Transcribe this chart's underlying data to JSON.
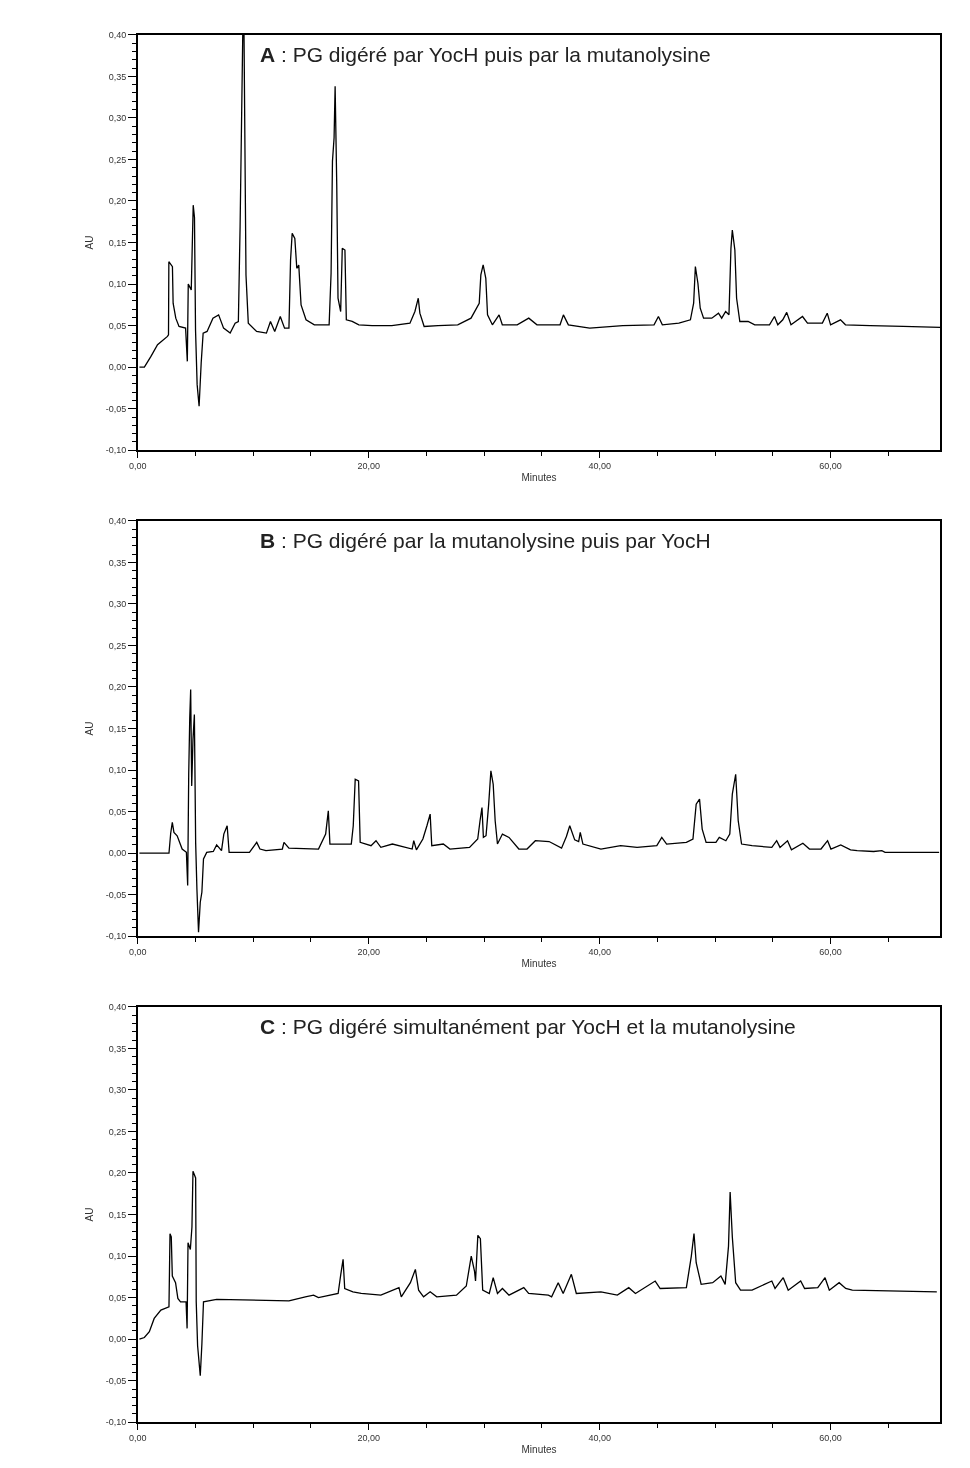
{
  "chart_data": [
    {
      "type": "line",
      "title": "A : PG digéré par YocH puis par la mutanolysine",
      "xlabel": "Minutes",
      "ylabel": "AU",
      "grid": false,
      "marker": "none",
      "line_style": "solid",
      "xlim": [
        0,
        69.5
      ],
      "ylim": [
        -0.1,
        0.4
      ],
      "xticks": [
        {
          "value": 0,
          "label": "0,00"
        },
        {
          "value": 20,
          "label": "20,00"
        },
        {
          "value": 40,
          "label": "40,00"
        },
        {
          "value": 60,
          "label": "60,00"
        }
      ],
      "yticks": [
        {
          "value": -0.1,
          "label": "-0,10"
        },
        {
          "value": -0.05,
          "label": "-0,05"
        },
        {
          "value": 0,
          "label": "0,00"
        },
        {
          "value": 0.05,
          "label": "0,05"
        },
        {
          "value": 0.1,
          "label": "0,10"
        },
        {
          "value": 0.15,
          "label": "0,15"
        },
        {
          "value": 0.2,
          "label": "0,20"
        },
        {
          "value": 0.25,
          "label": "0,25"
        },
        {
          "value": 0.3,
          "label": "0,30"
        },
        {
          "value": 0.35,
          "label": "0,35"
        },
        {
          "value": 0.4,
          "label": "0,40"
        }
      ],
      "series": [
        {
          "color": "#000000",
          "x": [
            0.14,
            0.57,
            1.14,
            1.71,
            2.57,
            2.66,
            2.69,
            3.0,
            3.06,
            3.29,
            3.57,
            4.14,
            4.29,
            4.37,
            4.63,
            4.8,
            4.91,
            5.0,
            5.14,
            5.31,
            5.49,
            5.66,
            6.0,
            6.51,
            7.0,
            7.43,
            8.0,
            8.43,
            8.71,
            8.86,
            9.09,
            9.2,
            9.37,
            9.57,
            10.29,
            11.14,
            11.49,
            11.86,
            12.34,
            12.71,
            13.09,
            13.23,
            13.37,
            13.6,
            13.77,
            13.94,
            14.14,
            14.57,
            15.29,
            16.57,
            16.74,
            16.86,
            17.0,
            17.09,
            17.23,
            17.34,
            17.57,
            17.71,
            17.94,
            18.06,
            18.57,
            19.14,
            20.29,
            22.0,
            23.57,
            24.0,
            24.29,
            24.43,
            24.8,
            26.0,
            27.71,
            28.86,
            29.57,
            29.71,
            29.91,
            30.14,
            30.29,
            30.71,
            31.29,
            31.57,
            32.86,
            33.86,
            34.57,
            36.57,
            36.86,
            37.29,
            39.14,
            42.0,
            44.71,
            45.09,
            45.43,
            46.86,
            47.86,
            48.14,
            48.29,
            48.51,
            48.71,
            49.0,
            49.71,
            50.29,
            50.57,
            50.91,
            51.2,
            51.37,
            51.49,
            51.71,
            51.86,
            52.14,
            52.86,
            53.43,
            54.71,
            55.14,
            55.43,
            55.86,
            56.2,
            56.57,
            57.57,
            58.0,
            59.29,
            59.71,
            60.0,
            60.86,
            61.29,
            63.43,
            66.29,
            69.49
          ],
          "values": [
            0.0,
            0.0,
            0.013,
            0.027,
            0.037,
            0.039,
            0.127,
            0.121,
            0.077,
            0.059,
            0.049,
            0.047,
            0.007,
            0.1,
            0.093,
            0.195,
            0.18,
            0.045,
            -0.021,
            -0.047,
            0.005,
            0.041,
            0.043,
            0.059,
            0.063,
            0.047,
            0.041,
            0.053,
            0.055,
            0.169,
            0.4,
            0.4,
            0.111,
            0.053,
            0.043,
            0.041,
            0.055,
            0.043,
            0.061,
            0.047,
            0.047,
            0.129,
            0.161,
            0.155,
            0.119,
            0.123,
            0.075,
            0.057,
            0.051,
            0.051,
            0.113,
            0.248,
            0.276,
            0.338,
            0.22,
            0.083,
            0.067,
            0.143,
            0.141,
            0.057,
            0.055,
            0.051,
            0.05,
            0.05,
            0.053,
            0.067,
            0.083,
            0.065,
            0.049,
            0.05,
            0.051,
            0.059,
            0.077,
            0.111,
            0.123,
            0.107,
            0.063,
            0.051,
            0.063,
            0.051,
            0.051,
            0.059,
            0.051,
            0.051,
            0.063,
            0.051,
            0.047,
            0.05,
            0.051,
            0.061,
            0.051,
            0.053,
            0.057,
            0.077,
            0.121,
            0.101,
            0.071,
            0.059,
            0.059,
            0.065,
            0.059,
            0.067,
            0.063,
            0.143,
            0.165,
            0.141,
            0.083,
            0.055,
            0.055,
            0.051,
            0.051,
            0.061,
            0.051,
            0.057,
            0.066,
            0.051,
            0.061,
            0.053,
            0.053,
            0.065,
            0.051,
            0.057,
            0.051,
            0.05,
            0.049,
            0.048
          ]
        }
      ]
    },
    {
      "type": "line",
      "title": "B : PG digéré par la mutanolysine puis par YocH",
      "xlabel": "Minutes",
      "ylabel": "AU",
      "grid": false,
      "marker": "none",
      "line_style": "solid",
      "xlim": [
        0,
        69.5
      ],
      "ylim": [
        -0.1,
        0.4
      ],
      "xticks": [
        {
          "value": 0,
          "label": "0,00"
        },
        {
          "value": 20,
          "label": "20,00"
        },
        {
          "value": 40,
          "label": "40,00"
        },
        {
          "value": 60,
          "label": "60,00"
        }
      ],
      "yticks": [
        {
          "value": -0.1,
          "label": "-0,10"
        },
        {
          "value": -0.05,
          "label": "-0,05"
        },
        {
          "value": 0,
          "label": "0,00"
        },
        {
          "value": 0.05,
          "label": "0,05"
        },
        {
          "value": 0.1,
          "label": "0,10"
        },
        {
          "value": 0.15,
          "label": "0,15"
        },
        {
          "value": 0.2,
          "label": "0,20"
        },
        {
          "value": 0.25,
          "label": "0,25"
        },
        {
          "value": 0.3,
          "label": "0,30"
        },
        {
          "value": 0.35,
          "label": "0,35"
        },
        {
          "value": 0.4,
          "label": "0,40"
        }
      ],
      "series": [
        {
          "color": "#000000",
          "x": [
            0.14,
            2.7,
            2.85,
            2.99,
            3.13,
            3.41,
            3.84,
            4.21,
            4.32,
            4.41,
            4.5,
            4.58,
            4.67,
            4.78,
            4.9,
            5.01,
            5.12,
            5.26,
            5.41,
            5.55,
            5.69,
            5.97,
            6.54,
            6.83,
            7.25,
            7.45,
            7.74,
            7.91,
            9.67,
            10.3,
            10.58,
            11.1,
            12.52,
            12.66,
            13.09,
            15.65,
            16.27,
            16.5,
            16.64,
            18.49,
            18.66,
            18.83,
            19.12,
            19.26,
            20.2,
            20.63,
            21.05,
            22.05,
            23.76,
            23.9,
            24.13,
            24.69,
            25.04,
            25.32,
            25.46,
            26.46,
            27.03,
            28.73,
            29.44,
            29.64,
            29.81,
            29.93,
            30.16,
            30.39,
            30.58,
            30.78,
            30.95,
            31.15,
            31.58,
            32.15,
            33.0,
            33.71,
            34.43,
            35.62,
            36.7,
            37.12,
            37.41,
            37.84,
            38.18,
            38.32,
            38.55,
            40.11,
            41.82,
            43.24,
            44.95,
            45.38,
            45.8,
            47.51,
            48.08,
            48.36,
            48.65,
            48.88,
            49.22,
            50.07,
            50.36,
            50.93,
            51.27,
            51.49,
            51.78,
            52.0,
            52.29,
            53.2,
            54.91,
            55.33,
            55.62,
            56.27,
            56.61,
            57.6,
            58.17,
            59.17,
            59.74,
            60.03,
            60.88,
            61.73,
            62.3,
            63.73,
            64.44,
            64.72,
            69.4
          ],
          "values": [
            0.0,
            0.0,
            0.024,
            0.037,
            0.025,
            0.021,
            0.005,
            0.001,
            -0.039,
            0.095,
            0.163,
            0.197,
            0.081,
            0.137,
            0.167,
            0.013,
            -0.043,
            -0.095,
            -0.059,
            -0.047,
            -0.007,
            0.001,
            0.002,
            0.01,
            0.003,
            0.023,
            0.033,
            0.001,
            0.001,
            0.013,
            0.005,
            0.003,
            0.005,
            0.013,
            0.006,
            0.005,
            0.023,
            0.051,
            0.011,
            0.011,
            0.033,
            0.089,
            0.087,
            0.013,
            0.009,
            0.015,
            0.007,
            0.011,
            0.005,
            0.015,
            0.004,
            0.017,
            0.033,
            0.047,
            0.009,
            0.011,
            0.005,
            0.007,
            0.017,
            0.039,
            0.055,
            0.019,
            0.021,
            0.059,
            0.099,
            0.083,
            0.039,
            0.011,
            0.023,
            0.019,
            0.005,
            0.005,
            0.015,
            0.014,
            0.006,
            0.02,
            0.033,
            0.016,
            0.014,
            0.025,
            0.011,
            0.005,
            0.009,
            0.007,
            0.009,
            0.019,
            0.011,
            0.013,
            0.017,
            0.059,
            0.065,
            0.029,
            0.013,
            0.013,
            0.019,
            0.015,
            0.023,
            0.071,
            0.095,
            0.039,
            0.011,
            0.009,
            0.007,
            0.015,
            0.007,
            0.015,
            0.004,
            0.012,
            0.005,
            0.005,
            0.015,
            0.005,
            0.01,
            0.004,
            0.003,
            0.002,
            0.003,
            0.001,
            0.001
          ]
        }
      ]
    },
    {
      "type": "line",
      "title": "C : PG digéré simultanément par YocH et la mutanolysine",
      "xlabel": "Minutes",
      "ylabel": "AU",
      "grid": false,
      "marker": "none",
      "line_style": "solid",
      "xlim": [
        0,
        69.5
      ],
      "ylim": [
        -0.1,
        0.4
      ],
      "xticks": [
        {
          "value": 0,
          "label": "0,00"
        },
        {
          "value": 20,
          "label": "20,00"
        },
        {
          "value": 40,
          "label": "40,00"
        },
        {
          "value": 60,
          "label": "60,00"
        }
      ],
      "yticks": [
        {
          "value": -0.1,
          "label": "-0,10"
        },
        {
          "value": -0.05,
          "label": "-0,05"
        },
        {
          "value": 0,
          "label": "0,00"
        },
        {
          "value": 0.05,
          "label": "0,05"
        },
        {
          "value": 0.1,
          "label": "0,10"
        },
        {
          "value": 0.15,
          "label": "0,15"
        },
        {
          "value": 0.2,
          "label": "0,20"
        },
        {
          "value": 0.25,
          "label": "0,25"
        },
        {
          "value": 0.3,
          "label": "0,30"
        },
        {
          "value": 0.35,
          "label": "0,35"
        },
        {
          "value": 0.4,
          "label": "0,40"
        }
      ],
      "series": [
        {
          "color": "#000000",
          "x": [
            0.14,
            0.57,
            1.0,
            1.42,
            2.0,
            2.7,
            2.79,
            2.9,
            2.99,
            3.27,
            3.47,
            3.7,
            4.18,
            4.27,
            4.35,
            4.55,
            4.69,
            4.78,
            5.01,
            5.06,
            5.18,
            5.41,
            5.55,
            5.69,
            6.83,
            13.09,
            14.51,
            15.22,
            15.65,
            17.35,
            17.58,
            17.78,
            17.92,
            18.63,
            19.35,
            21.05,
            22.62,
            22.82,
            23.61,
            24.04,
            24.32,
            24.75,
            25.32,
            25.89,
            27.6,
            28.45,
            28.88,
            29.16,
            29.25,
            29.45,
            29.67,
            29.87,
            30.44,
            30.78,
            31.15,
            31.58,
            32.15,
            33.43,
            33.85,
            35.56,
            35.84,
            36.41,
            36.84,
            37.55,
            37.98,
            40.11,
            41.53,
            42.52,
            43.1,
            44.81,
            45.24,
            47.51,
            47.94,
            48.17,
            48.36,
            48.79,
            49.79,
            50.5,
            50.87,
            51.16,
            51.3,
            51.49,
            51.78,
            52.2,
            53.2,
            54.91,
            55.19,
            55.9,
            56.33,
            57.41,
            57.75,
            58.89,
            59.52,
            59.89,
            60.74,
            61.31,
            61.88,
            69.2
          ],
          "values": [
            0.0,
            0.002,
            0.009,
            0.025,
            0.035,
            0.039,
            0.127,
            0.123,
            0.076,
            0.068,
            0.049,
            0.045,
            0.045,
            0.013,
            0.116,
            0.108,
            0.135,
            0.202,
            0.194,
            0.045,
            -0.008,
            -0.044,
            -0.006,
            0.045,
            0.048,
            0.046,
            0.051,
            0.053,
            0.05,
            0.055,
            0.078,
            0.096,
            0.061,
            0.057,
            0.055,
            0.053,
            0.062,
            0.051,
            0.068,
            0.084,
            0.059,
            0.051,
            0.057,
            0.051,
            0.053,
            0.064,
            0.1,
            0.082,
            0.07,
            0.125,
            0.121,
            0.059,
            0.055,
            0.074,
            0.055,
            0.061,
            0.053,
            0.062,
            0.055,
            0.053,
            0.051,
            0.068,
            0.055,
            0.078,
            0.055,
            0.057,
            0.053,
            0.062,
            0.055,
            0.07,
            0.061,
            0.062,
            0.1,
            0.127,
            0.092,
            0.066,
            0.068,
            0.076,
            0.066,
            0.112,
            0.177,
            0.123,
            0.068,
            0.059,
            0.059,
            0.07,
            0.061,
            0.074,
            0.059,
            0.07,
            0.061,
            0.062,
            0.074,
            0.059,
            0.068,
            0.061,
            0.059,
            0.057
          ]
        }
      ]
    }
  ]
}
